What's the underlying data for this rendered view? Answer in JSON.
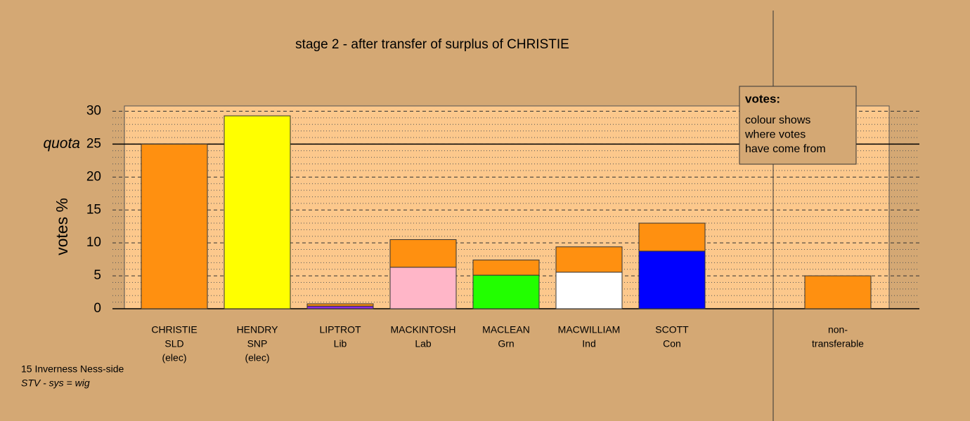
{
  "chart_data": {
    "type": "stacked-bar",
    "title": "stage 2 - after transfer of surplus of CHRISTIE",
    "y_label": "votes %",
    "quota_label": "quota",
    "quota": 25,
    "categories": [
      [
        "CHRISTIE",
        "SLD",
        "(elec)"
      ],
      [
        "HENDRY",
        "SNP",
        "(elec)"
      ],
      [
        "LIPTROT",
        "Lib"
      ],
      [
        "MACKINTOSH",
        "Lab"
      ],
      [
        "MACLEAN",
        "Grn"
      ],
      [
        "MACWILLIAM",
        "Ind"
      ],
      [
        "SCOTT",
        "Con"
      ],
      null,
      [
        "non-",
        "transferable"
      ]
    ],
    "series": [
      {
        "colors": [
          "#ff9010",
          "#ffff00",
          "#8a2be2",
          "#ffb6c8",
          "#22ff00",
          "#ffffff",
          "#0000ff",
          null,
          null
        ],
        "values": [
          25,
          29.3,
          0.4,
          6.3,
          5.1,
          5.55,
          8.75,
          null,
          null
        ]
      },
      {
        "color": "#ff9010",
        "values": [
          null,
          null,
          0.35,
          4.2,
          2.3,
          3.85,
          4.25,
          null,
          5
        ]
      }
    ],
    "ylim": [
      0,
      30.8
    ],
    "yticks": [
      0,
      5,
      10,
      15,
      20,
      25,
      30
    ],
    "minor_yticks": [
      1,
      2,
      3,
      4,
      6,
      7,
      8,
      9,
      11,
      12,
      13,
      14,
      16,
      17,
      18,
      19,
      21,
      22,
      23,
      24,
      26,
      27,
      28,
      29
    ],
    "legend": {
      "title": "votes:",
      "lines": [
        "colour shows",
        "where votes",
        "have come from"
      ]
    },
    "footnote": [
      "15 Inverness Ness-side",
      "STV - sys = wig"
    ]
  }
}
